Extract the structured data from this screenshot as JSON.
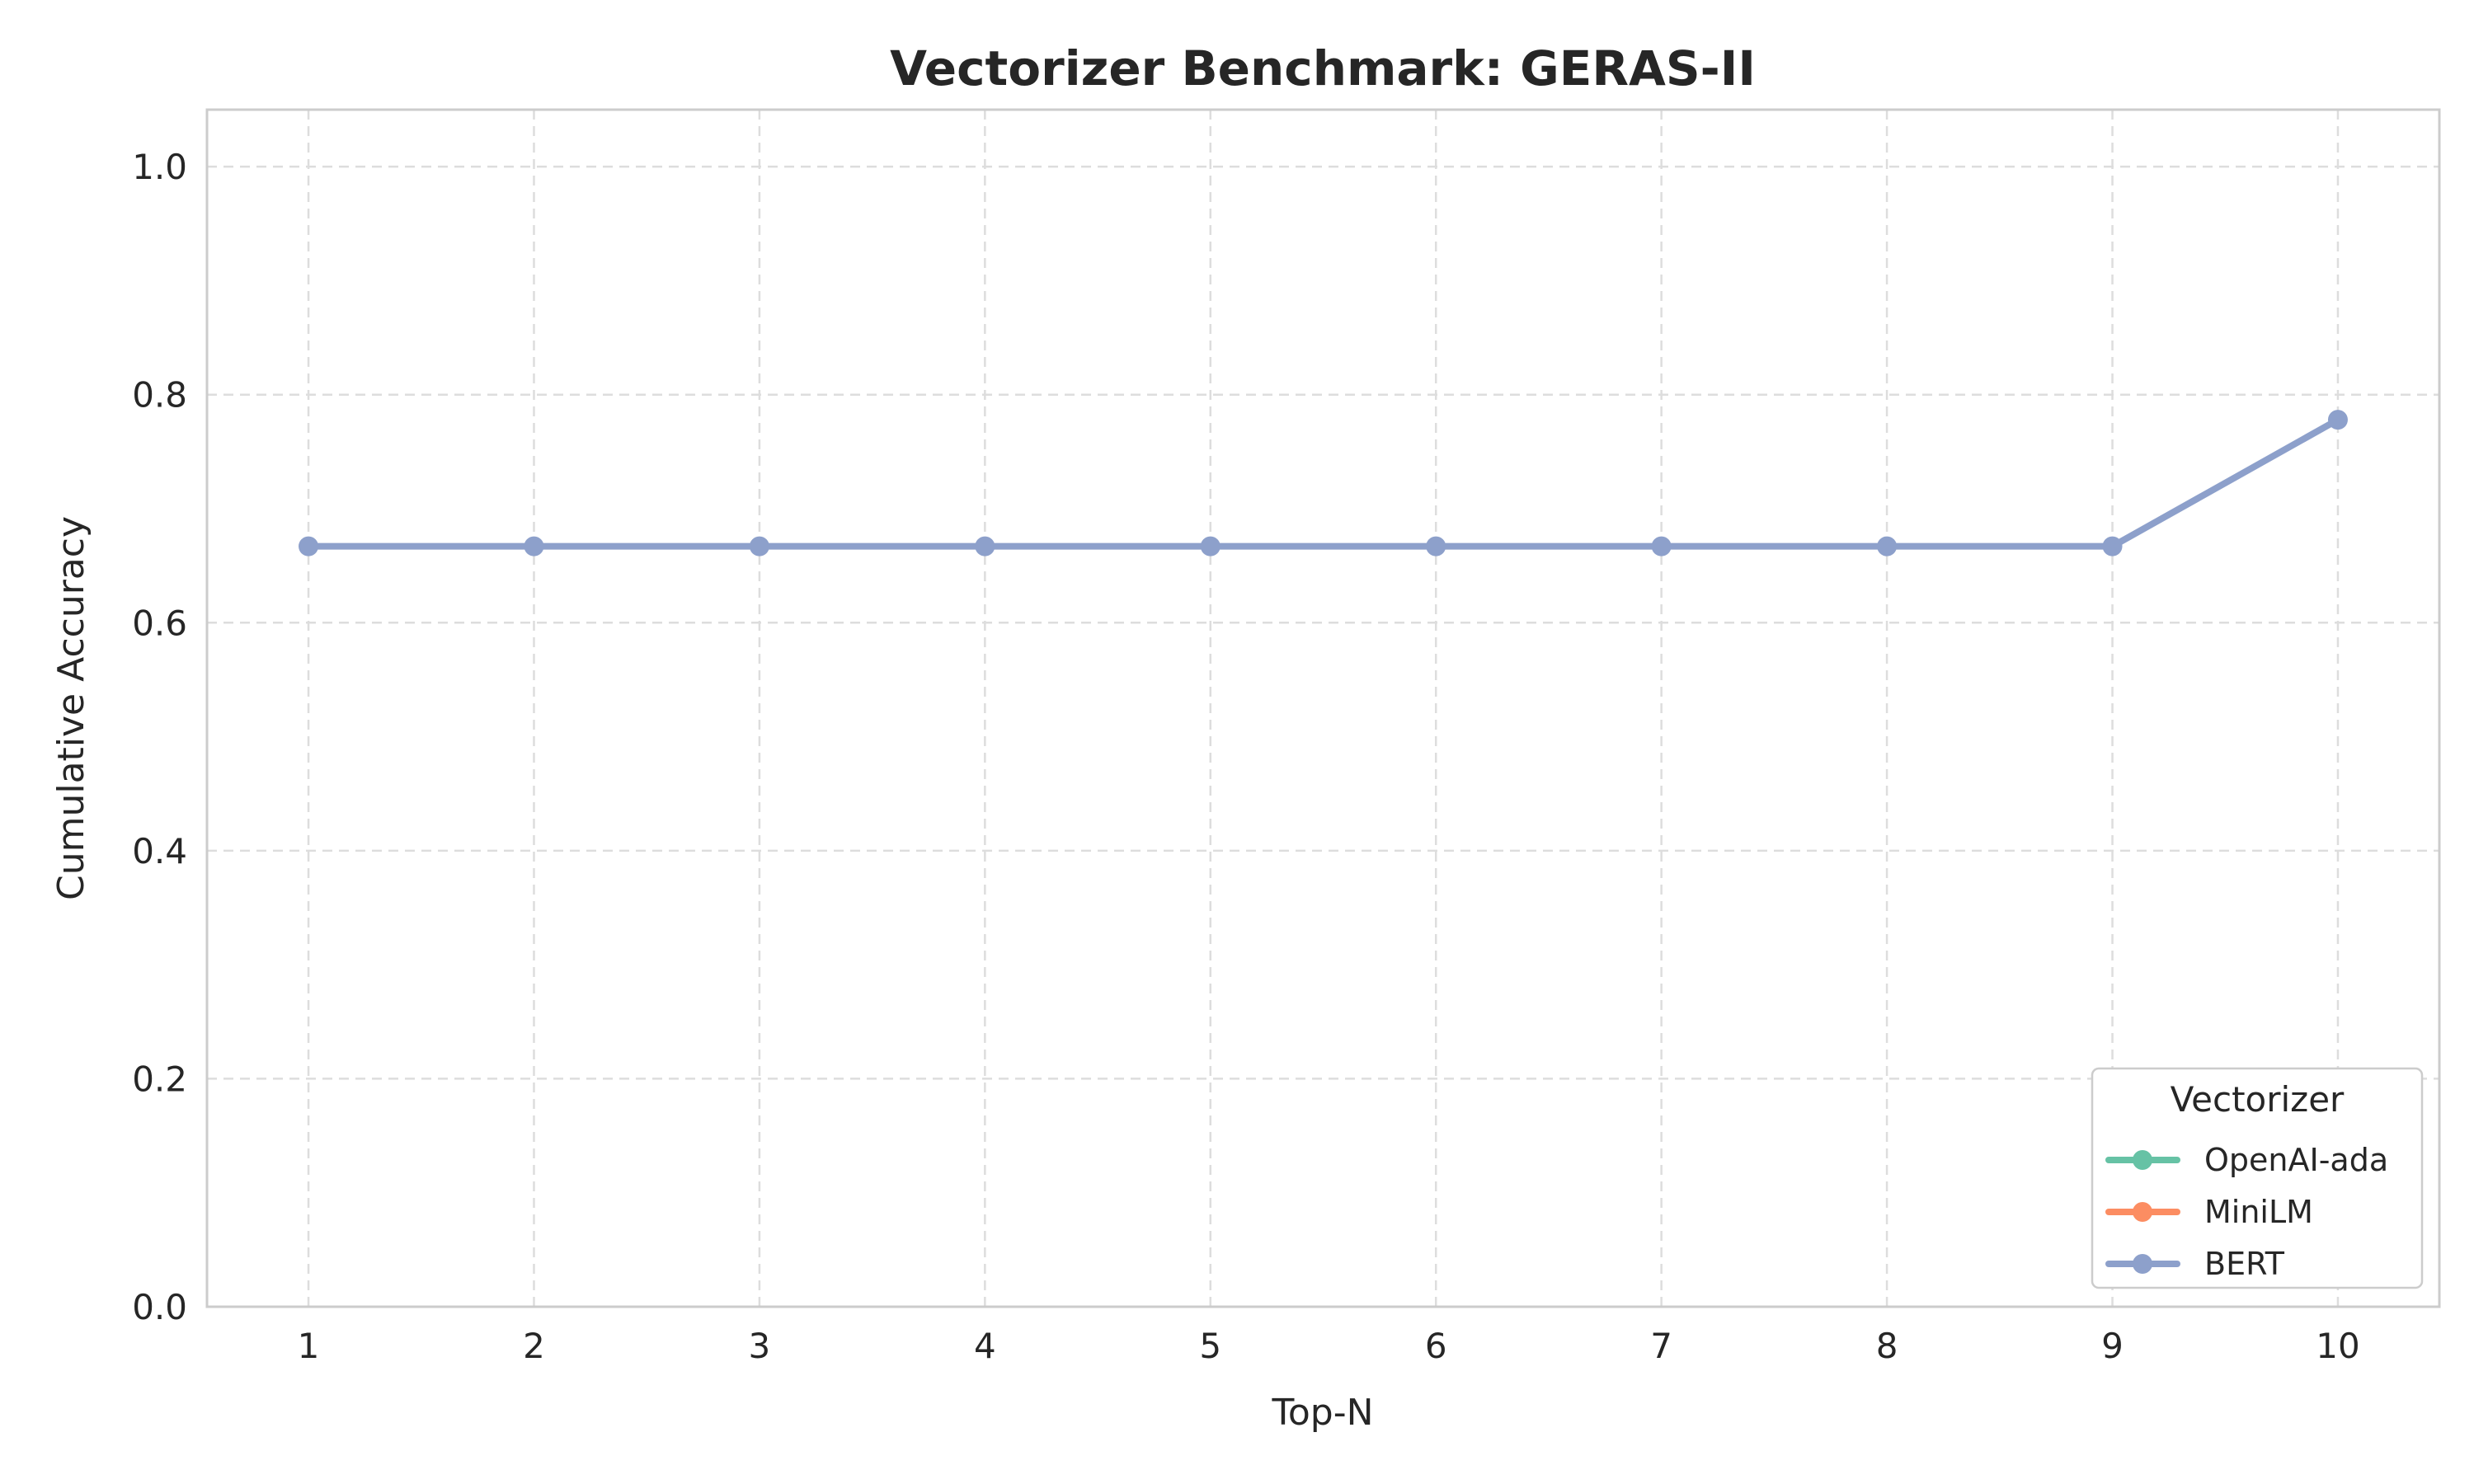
{
  "chart_data": {
    "type": "line",
    "title": "Vectorizer Benchmark: GERAS-II",
    "xlabel": "Top-N",
    "ylabel": "Cumulative Accuracy",
    "x": [
      1,
      2,
      3,
      4,
      5,
      6,
      7,
      8,
      9,
      10
    ],
    "xticks": [
      "1",
      "2",
      "3",
      "4",
      "5",
      "6",
      "7",
      "8",
      "9",
      "10"
    ],
    "xlim": [
      0.55,
      10.45
    ],
    "ylim": [
      0,
      1.05
    ],
    "yticks": [
      "0.0",
      "0.2",
      "0.4",
      "0.6",
      "0.8",
      "1.0"
    ],
    "ytick_values": [
      0,
      0.2,
      0.4,
      0.6,
      0.8,
      1.0
    ],
    "grid": true,
    "legend": {
      "title": "Vectorizer",
      "placement": "bottom-right"
    },
    "series": [
      {
        "name": "OpenAI-ada",
        "color": "#66c2a5",
        "values": [
          null,
          null,
          null,
          null,
          null,
          null,
          null,
          null,
          null,
          null
        ]
      },
      {
        "name": "MiniLM",
        "color": "#fc8d62",
        "values": [
          null,
          null,
          null,
          null,
          null,
          null,
          null,
          null,
          null,
          null
        ]
      },
      {
        "name": "BERT",
        "color": "#8da0cb",
        "values": [
          0.667,
          0.667,
          0.667,
          0.667,
          0.667,
          0.667,
          0.667,
          0.667,
          0.667,
          0.778
        ]
      }
    ]
  }
}
